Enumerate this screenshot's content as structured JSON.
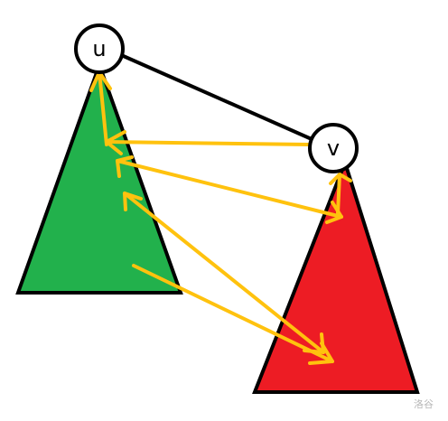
{
  "nodes": {
    "u": {
      "label": "u"
    },
    "v": {
      "label": "v"
    }
  },
  "watermark": "洛谷",
  "colors": {
    "green_subtree": "#22b14c",
    "red_subtree": "#ed1c24",
    "arrows": "#ffc20e",
    "edge": "#000000",
    "node_fill": "#ffffff"
  }
}
